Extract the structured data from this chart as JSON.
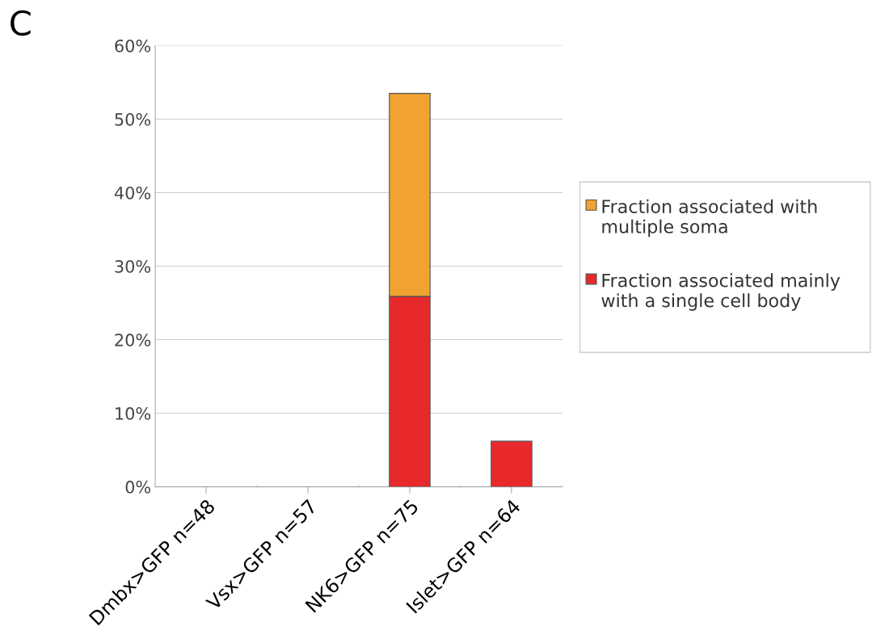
{
  "chart_data": {
    "type": "bar",
    "stacked": true,
    "categories": [
      "Dmbx>GFP n=48",
      "Vsx>GFP n=57",
      "NK6>GFP n=75",
      "Islet>GFP n=64"
    ],
    "series": [
      {
        "name": "Fraction associated mainly with a single cell body",
        "color": "#e8292b",
        "values": [
          0,
          0,
          25.9,
          6.2
        ]
      },
      {
        "name": "Fraction associated with multiple soma",
        "color": "#f0a330",
        "values": [
          0,
          0,
          27.6,
          0
        ]
      }
    ],
    "ylim": [
      0,
      60
    ],
    "yticks": [
      {
        "value": 0,
        "label": "0%"
      },
      {
        "value": 10,
        "label": "10%"
      },
      {
        "value": 20,
        "label": "20%"
      },
      {
        "value": 30,
        "label": "30%"
      },
      {
        "value": 40,
        "label": "40%"
      },
      {
        "value": 50,
        "label": "50%"
      },
      {
        "value": 60,
        "label": "60%"
      }
    ],
    "grid": "y",
    "legend": "right",
    "annotations": [
      "C"
    ]
  }
}
